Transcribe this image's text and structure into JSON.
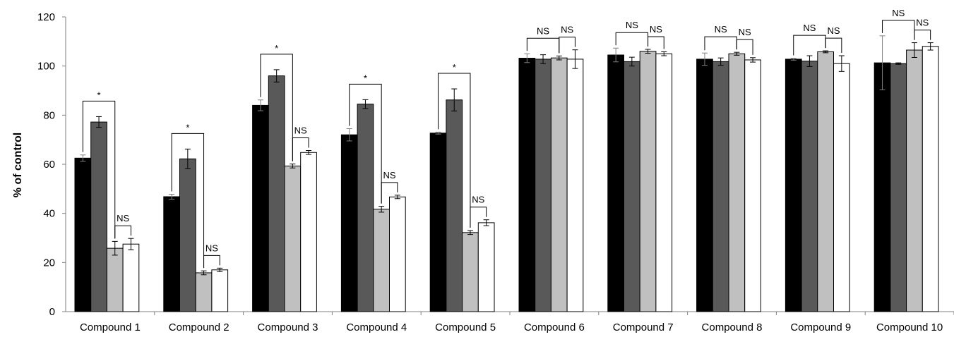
{
  "chart_data": {
    "type": "bar",
    "ylabel": "% of control",
    "ylim": [
      0,
      120
    ],
    "yticks": [
      0,
      20,
      40,
      60,
      80,
      100,
      120
    ],
    "grid": false,
    "legend": "none",
    "categories": [
      "Compound 1",
      "Compound 2",
      "Compound 3",
      "Compound 4",
      "Compound 5",
      "Compound 6",
      "Compound 7",
      "Compound 8",
      "Compound 9",
      "Compound 10"
    ],
    "series": [
      {
        "color": "#000000",
        "values": [
          62.5,
          46.8,
          84.0,
          72.0,
          72.7,
          103.2,
          104.5,
          102.8,
          102.8,
          101.3
        ],
        "errors": [
          1.3,
          1.0,
          2.2,
          2.5,
          0.4,
          1.8,
          2.8,
          2.5,
          0.4,
          11.0
        ]
      },
      {
        "color": "#595959",
        "values": [
          77.2,
          62.2,
          96.0,
          84.5,
          86.2,
          102.8,
          101.8,
          101.8,
          102.0,
          101.0
        ],
        "errors": [
          2.2,
          4.0,
          2.5,
          1.8,
          4.5,
          1.8,
          1.8,
          1.5,
          2.2,
          0.3
        ]
      },
      {
        "color": "#c0c0c0",
        "values": [
          25.8,
          15.8,
          59.3,
          41.7,
          32.2,
          103.3,
          106.0,
          105.0,
          105.8,
          106.5
        ],
        "errors": [
          2.8,
          0.8,
          0.8,
          1.2,
          0.8,
          0.8,
          0.8,
          0.6,
          0.4,
          3.0
        ]
      },
      {
        "color": "#ffffff",
        "values": [
          27.5,
          17.0,
          64.8,
          46.7,
          36.2,
          102.8,
          105.0,
          102.5,
          101.0,
          108.0
        ],
        "errors": [
          2.3,
          0.7,
          0.8,
          0.7,
          1.2,
          3.8,
          0.8,
          0.9,
          3.2,
          1.5
        ]
      }
    ],
    "annotations": [
      {
        "category": "Compound 1",
        "label": "*",
        "from_series": 0,
        "to_series": 2
      },
      {
        "category": "Compound 1",
        "label": "NS",
        "from_series": 2,
        "to_series": 3
      },
      {
        "category": "Compound 2",
        "label": "*",
        "from_series": 0,
        "to_series": 2
      },
      {
        "category": "Compound 2",
        "label": "NS",
        "from_series": 2,
        "to_series": 3
      },
      {
        "category": "Compound 3",
        "label": "*",
        "from_series": 0,
        "to_series": 2
      },
      {
        "category": "Compound 3",
        "label": "NS",
        "from_series": 2,
        "to_series": 3
      },
      {
        "category": "Compound 4",
        "label": "*",
        "from_series": 0,
        "to_series": 2
      },
      {
        "category": "Compound 4",
        "label": "NS",
        "from_series": 2,
        "to_series": 3
      },
      {
        "category": "Compound 5",
        "label": "*",
        "from_series": 0,
        "to_series": 2
      },
      {
        "category": "Compound 5",
        "label": "NS",
        "from_series": 2,
        "to_series": 3
      },
      {
        "category": "Compound 6",
        "label": "NS",
        "from_series": 0,
        "to_series": 2
      },
      {
        "category": "Compound 6",
        "label": "NS",
        "from_series": 2,
        "to_series": 3
      },
      {
        "category": "Compound 7",
        "label": "NS",
        "from_series": 0,
        "to_series": 2
      },
      {
        "category": "Compound 7",
        "label": "NS",
        "from_series": 2,
        "to_series": 3
      },
      {
        "category": "Compound 8",
        "label": "NS",
        "from_series": 0,
        "to_series": 2
      },
      {
        "category": "Compound 8",
        "label": "NS",
        "from_series": 2,
        "to_series": 3
      },
      {
        "category": "Compound 9",
        "label": "NS",
        "from_series": 0,
        "to_series": 2
      },
      {
        "category": "Compound 9",
        "label": "NS",
        "from_series": 2,
        "to_series": 3
      },
      {
        "category": "Compound 10",
        "label": "NS",
        "from_series": 0,
        "to_series": 2
      },
      {
        "category": "Compound 10",
        "label": "NS",
        "from_series": 2,
        "to_series": 3
      }
    ]
  }
}
